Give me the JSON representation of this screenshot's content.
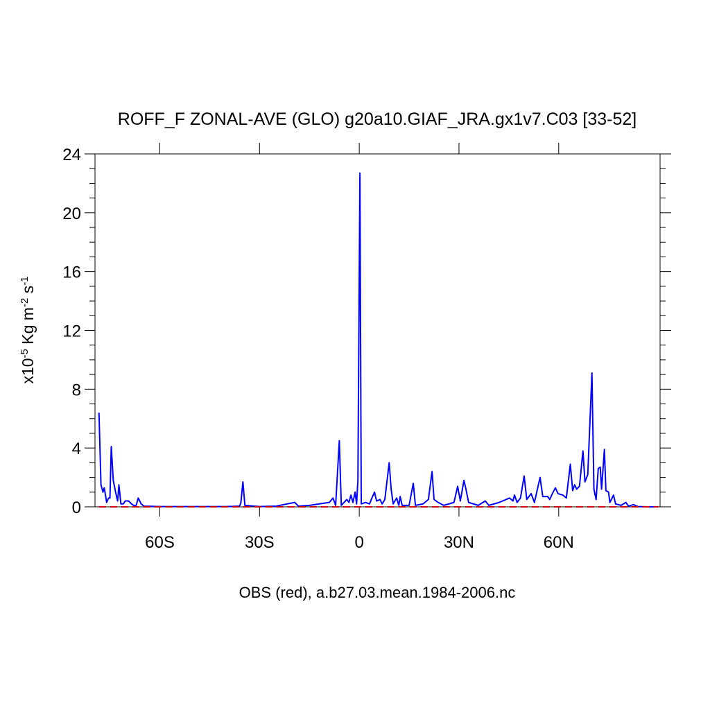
{
  "chart_data": {
    "type": "line",
    "title": "ROFF_F ZONAL-AVE (GLO) g20a10.GIAF_JRA.gx1v7.C03 [33-52]",
    "x_label": "OBS (red), a.b27.03.mean.1984-2006.nc",
    "y_label_parts": [
      "x10",
      "-5",
      " Kg m",
      "-2",
      " s",
      "-1"
    ],
    "xlim": [
      -79.5,
      90.5
    ],
    "ylim": [
      0,
      24
    ],
    "xticks": [
      {
        "value": -60,
        "label": "60S"
      },
      {
        "value": -30,
        "label": "30S"
      },
      0,
      {
        "value": 30,
        "label": "30N"
      },
      {
        "value": 60,
        "label": "60N"
      }
    ],
    "yticks": [
      0,
      4,
      8,
      12,
      16,
      20,
      24
    ],
    "series": [
      {
        "color": "#0000ff",
        "dash": "none",
        "x": [
          -78.3,
          -77.7,
          -77.1,
          -76.7,
          -76.0,
          -75.4,
          -75.0,
          -74.6,
          -74.0,
          -73.3,
          -72.7,
          -72.3,
          -71.7,
          -71.0,
          -70.4,
          -69.4,
          -68.5,
          -67.9,
          -67.1,
          -66.5,
          -65.6,
          -64.8,
          -60,
          -50,
          -45,
          -40,
          -36.0,
          -35.6,
          -35.0,
          -34.4,
          -30,
          -25,
          -19.4,
          -18.3,
          -15,
          -12,
          -9.0,
          -7.9,
          -7.1,
          -6.0,
          -5.4,
          -3.75,
          -3.1,
          -2.5,
          -1.9,
          -1.25,
          -0.8,
          -0.4,
          0.2,
          0.6,
          1.9,
          3.1,
          4.0,
          4.6,
          5.2,
          6.25,
          6.9,
          7.7,
          9.0,
          9.6,
          10.2,
          11.25,
          11.9,
          12.3,
          12.9,
          15.0,
          16.25,
          16.9,
          19.2,
          20.8,
          21.9,
          22.5,
          23.75,
          25.4,
          28.5,
          29.6,
          30.4,
          31.5,
          32.1,
          32.9,
          35.8,
          37.9,
          39.0,
          42.1,
          45.2,
          46.25,
          46.7,
          47.5,
          48.5,
          49.6,
          50.4,
          51.7,
          52.7,
          54.4,
          55.2,
          56.7,
          57.3,
          58.1,
          59.0,
          59.8,
          61.25,
          62.3,
          63.5,
          64.2,
          64.8,
          65.4,
          66.25,
          67.3,
          67.9,
          68.75,
          70.0,
          70.6,
          71.25,
          71.9,
          72.5,
          72.9,
          73.75,
          74.2,
          75.0,
          75.4,
          76.5,
          77.1,
          78.75,
          80.2,
          81.0,
          82.5,
          83.75,
          86.9,
          90.0
        ],
        "values": [
          6.4,
          1.5,
          1.0,
          1.3,
          0.3,
          0.6,
          0.6,
          4.1,
          1.8,
          1.0,
          0.4,
          1.5,
          0.2,
          0.2,
          0.4,
          0.4,
          0.2,
          0.1,
          0.1,
          0.6,
          0.2,
          0.05,
          0.02,
          0.02,
          0.02,
          0.02,
          0.05,
          0.3,
          1.7,
          0.1,
          0.02,
          0.05,
          0.3,
          0.05,
          0.1,
          0.2,
          0.3,
          0.6,
          0.1,
          4.5,
          0.1,
          0.5,
          0.3,
          0.8,
          0.3,
          1.0,
          0.2,
          1.8,
          22.7,
          0.2,
          0.3,
          0.2,
          0.7,
          1.0,
          0.4,
          0.5,
          0.2,
          0.5,
          3.0,
          1.2,
          0.2,
          0.6,
          0.1,
          0.7,
          0.1,
          0.1,
          1.6,
          0.1,
          0.2,
          0.5,
          2.4,
          0.5,
          0.3,
          0.1,
          0.3,
          1.4,
          0.4,
          1.8,
          1.2,
          0.3,
          0.1,
          0.4,
          0.1,
          0.3,
          0.6,
          0.4,
          0.8,
          0.3,
          0.6,
          2.1,
          0.5,
          0.9,
          0.3,
          2.0,
          0.7,
          0.7,
          0.5,
          0.9,
          1.3,
          0.9,
          0.8,
          0.6,
          2.9,
          1.1,
          1.5,
          1.2,
          1.4,
          3.8,
          1.7,
          2.2,
          9.1,
          1.2,
          0.5,
          2.6,
          2.7,
          1.2,
          3.9,
          1.1,
          1.0,
          0.3,
          0.8,
          0.2,
          0.1,
          0.3,
          0.05,
          0.15,
          0.02,
          0,
          0
        ]
      },
      {
        "color": "#cc0000",
        "dash": "dashed",
        "x": [
          -78.3,
          -60,
          -40,
          -20,
          0,
          20,
          40,
          60,
          80,
          90.0
        ],
        "values": [
          0,
          0,
          0,
          0,
          0,
          0,
          0,
          0,
          0,
          0
        ]
      }
    ]
  }
}
